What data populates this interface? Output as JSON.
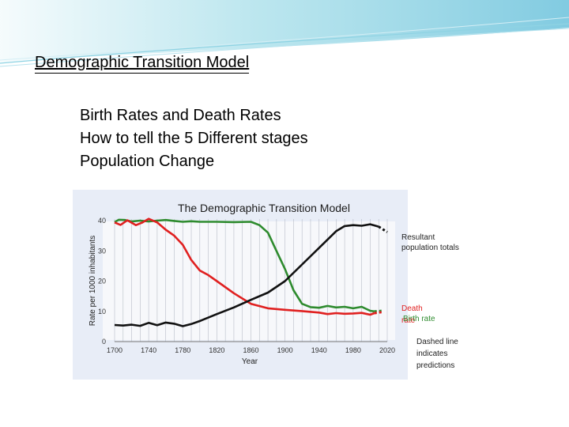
{
  "slide": {
    "title": "Demographic Transition Model",
    "lines": [
      "Birth Rates and Death Rates",
      "How to tell the 5 Different stages",
      "Population Change"
    ]
  },
  "colors": {
    "birth": "#2e8b2e",
    "death": "#e02020",
    "population": "#111111",
    "plot_bg": "#e8edf7",
    "banner": "#3fb8d0"
  },
  "chart_data": {
    "type": "line",
    "title": "The Demographic Transition Model",
    "xlabel": "Year",
    "ylabel": "Rate per 1000 inhabitants",
    "xlim": [
      1700,
      2020
    ],
    "ylim": [
      0,
      40
    ],
    "xticks": [
      1700,
      1740,
      1780,
      1820,
      1860,
      1900,
      1940,
      1980,
      2020
    ],
    "yticks": [
      0,
      10,
      20,
      30,
      40
    ],
    "grid": "vertical",
    "series": [
      {
        "name": "Birth rate",
        "color": "#2e8b2e",
        "points": [
          [
            1700,
            39.5
          ],
          [
            1705,
            40.3
          ],
          [
            1712,
            40.2
          ],
          [
            1720,
            39.7
          ],
          [
            1730,
            40
          ],
          [
            1740,
            39.7
          ],
          [
            1750,
            40
          ],
          [
            1760,
            40.2
          ],
          [
            1770,
            39.9
          ],
          [
            1780,
            39.6
          ],
          [
            1790,
            39.8
          ],
          [
            1800,
            39.6
          ],
          [
            1820,
            39.6
          ],
          [
            1840,
            39.5
          ],
          [
            1860,
            39.6
          ],
          [
            1870,
            38.5
          ],
          [
            1880,
            36
          ],
          [
            1890,
            30
          ],
          [
            1900,
            24
          ],
          [
            1910,
            17
          ],
          [
            1920,
            12.5
          ],
          [
            1930,
            11.4
          ],
          [
            1940,
            11.2
          ],
          [
            1950,
            11.8
          ],
          [
            1960,
            11.3
          ],
          [
            1970,
            11.5
          ],
          [
            1980,
            11
          ],
          [
            1990,
            11.5
          ],
          [
            2000,
            10.2
          ],
          [
            2005,
            10
          ]
        ],
        "prediction": [
          [
            2005,
            10
          ],
          [
            2015,
            10.2
          ]
        ]
      },
      {
        "name": "Death",
        "color": "#e02020",
        "points": [
          [
            1700,
            39.4
          ],
          [
            1707,
            38.6
          ],
          [
            1715,
            40.1
          ],
          [
            1725,
            38.5
          ],
          [
            1732,
            39.3
          ],
          [
            1740,
            40.6
          ],
          [
            1750,
            39.4
          ],
          [
            1760,
            37
          ],
          [
            1770,
            35
          ],
          [
            1780,
            32
          ],
          [
            1790,
            27
          ],
          [
            1800,
            23.5
          ],
          [
            1810,
            22
          ],
          [
            1820,
            20
          ],
          [
            1840,
            16
          ],
          [
            1860,
            12.5
          ],
          [
            1880,
            11
          ],
          [
            1900,
            10.5
          ],
          [
            1920,
            10.1
          ],
          [
            1940,
            9.6
          ],
          [
            1950,
            9.1
          ],
          [
            1960,
            9.4
          ],
          [
            1970,
            9.2
          ],
          [
            1980,
            9.3
          ],
          [
            1990,
            9.5
          ],
          [
            2000,
            8.9
          ],
          [
            2005,
            9.4
          ]
        ],
        "prediction": [
          [
            2005,
            9.4
          ],
          [
            2015,
            9.8
          ]
        ]
      },
      {
        "name": "Resultant population totals",
        "color": "#111111",
        "points": [
          [
            1700,
            5.5
          ],
          [
            1710,
            5.3
          ],
          [
            1720,
            5.6
          ],
          [
            1730,
            5.2
          ],
          [
            1740,
            6.2
          ],
          [
            1750,
            5.4
          ],
          [
            1760,
            6.3
          ],
          [
            1770,
            5.9
          ],
          [
            1780,
            5.1
          ],
          [
            1790,
            5.8
          ],
          [
            1800,
            6.8
          ],
          [
            1820,
            9.1
          ],
          [
            1840,
            11.3
          ],
          [
            1860,
            13.8
          ],
          [
            1880,
            16.2
          ],
          [
            1900,
            20
          ],
          [
            1920,
            25.5
          ],
          [
            1940,
            31
          ],
          [
            1960,
            36.5
          ],
          [
            1970,
            38.2
          ],
          [
            1980,
            38.5
          ],
          [
            1990,
            38.3
          ],
          [
            2000,
            38.8
          ],
          [
            2010,
            38
          ]
        ],
        "prediction": [
          [
            2010,
            38
          ],
          [
            2020,
            36.2
          ]
        ]
      }
    ],
    "annotations": {
      "population": "Resultant population totals",
      "death": "Death",
      "birth": "Birth rate",
      "rate": "rate",
      "dashed_note": "Dashed line indicates predictions"
    }
  }
}
